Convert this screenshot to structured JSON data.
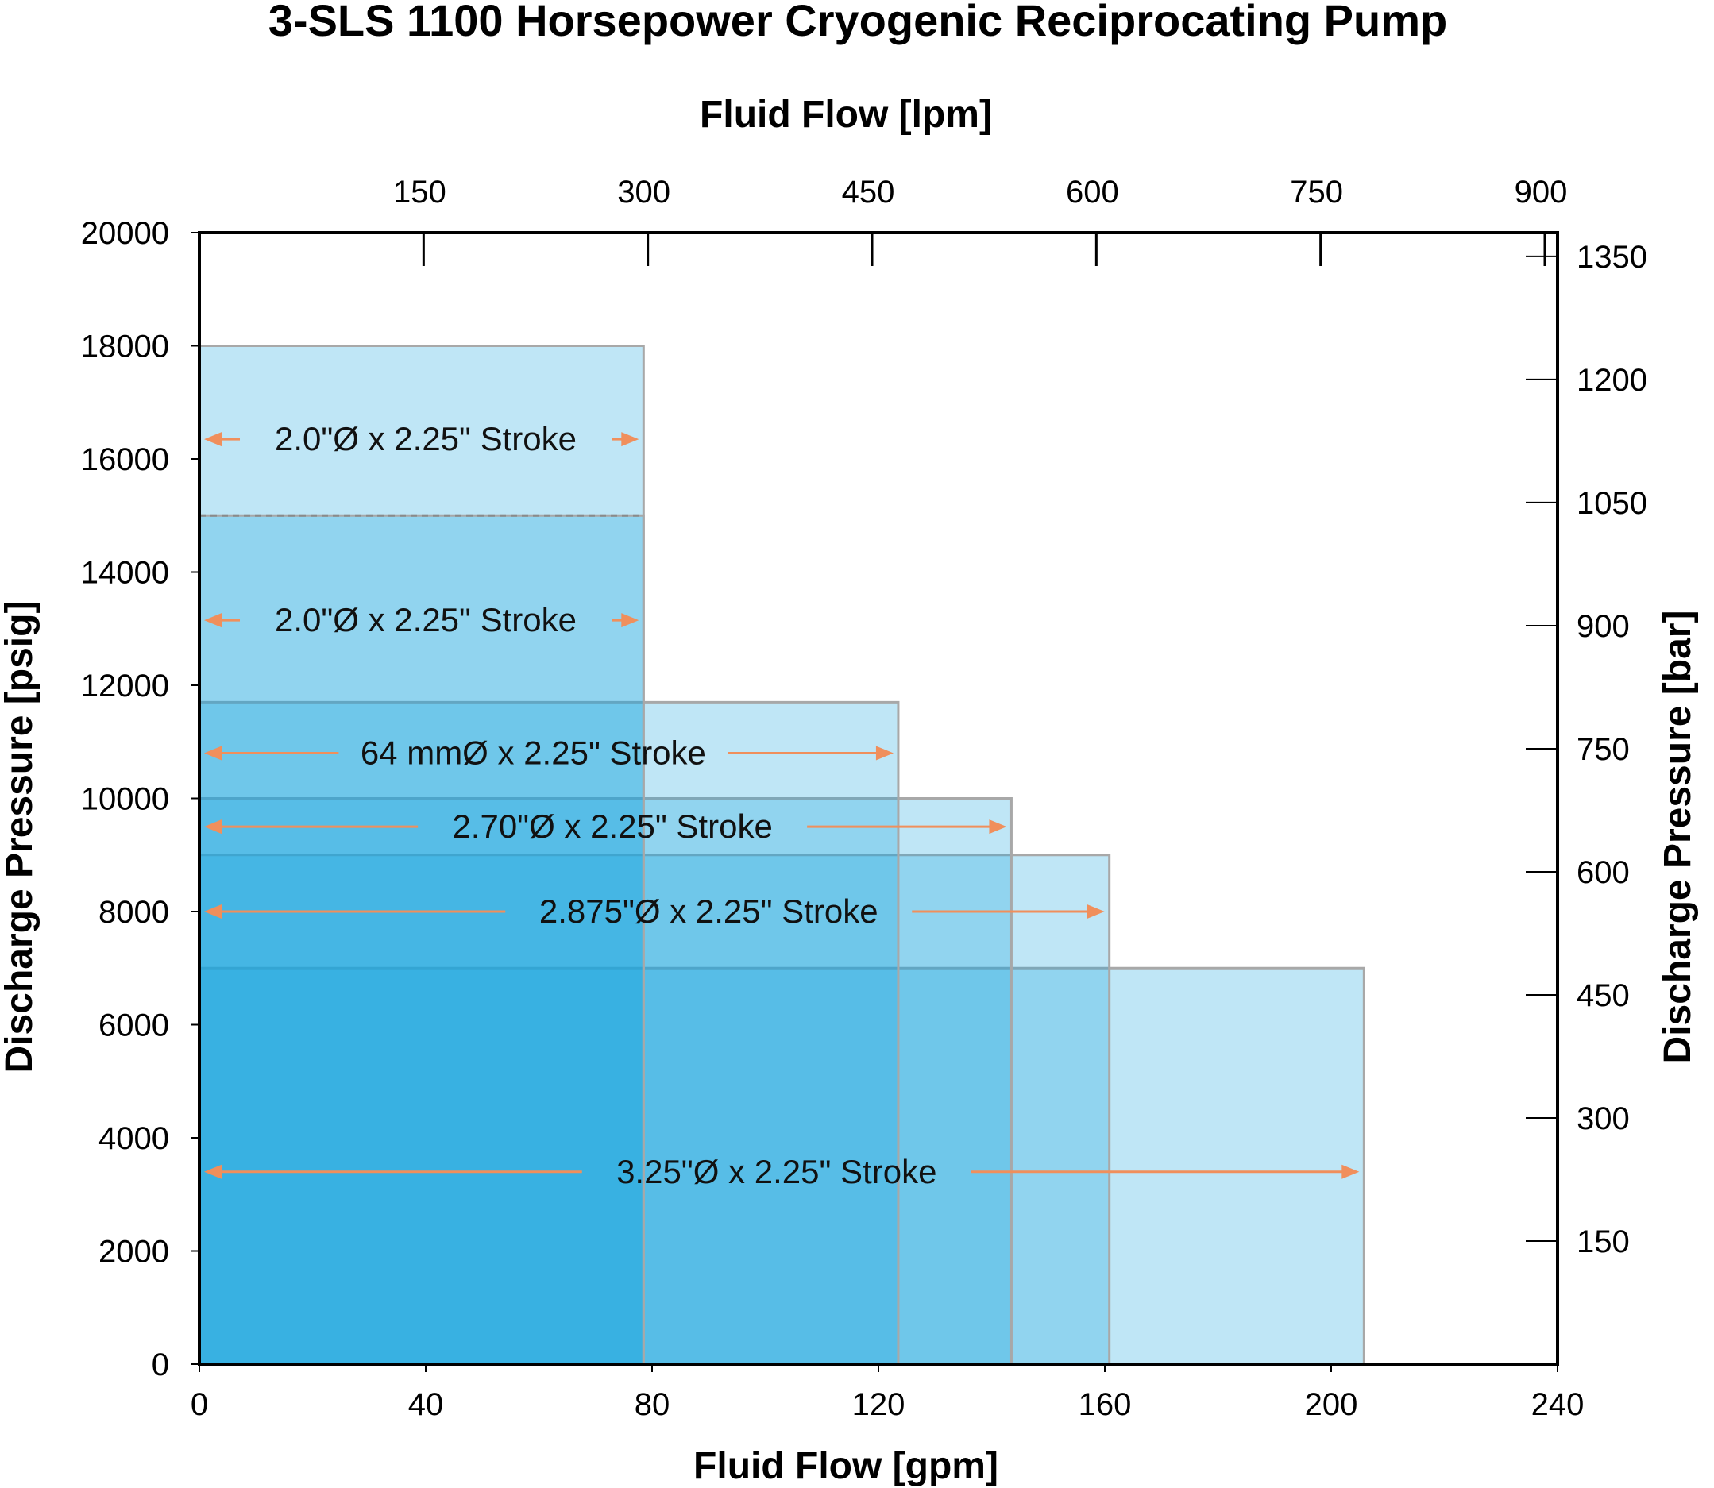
{
  "chart_data": {
    "type": "bar",
    "title": "3-SLS 1100 Horsepower Cryogenic Reciprocating Pump",
    "xlabel": "Fluid Flow [gpm]",
    "x2label": "Fluid Flow [lpm]",
    "ylabel": "Discharge Pressure [psig]",
    "y2label": "Discharge Pressure [bar]",
    "xlim": [
      0,
      240
    ],
    "ylim": [
      0,
      20000
    ],
    "x_ticks": [
      "0",
      "40",
      "80",
      "120",
      "160",
      "200",
      "240"
    ],
    "x2_ticks": [
      "150",
      "300",
      "450",
      "600",
      "750",
      "900"
    ],
    "y_ticks": [
      "0",
      "2000",
      "4000",
      "6000",
      "8000",
      "10000",
      "12000",
      "14000",
      "16000",
      "18000",
      "20000"
    ],
    "y2_ticks": [
      "150",
      "300",
      "450",
      "600",
      "750",
      "900",
      "1050",
      "1200",
      "1350"
    ],
    "regions": [
      {
        "label": "2.0\"Ø x 2.25\" Stroke",
        "max_flow_gpm": 78.5,
        "max_pressure_psig": 18000
      },
      {
        "label": "2.0\"Ø x 2.25\" Stroke",
        "max_flow_gpm": 78.5,
        "max_pressure_psig": 15000
      },
      {
        "label": "64 mmØ x 2.25\" Stroke",
        "max_flow_gpm": 123.5,
        "max_pressure_psig": 11700
      },
      {
        "label": "2.70\"Ø x 2.25\" Stroke",
        "max_flow_gpm": 143.5,
        "max_pressure_psig": 10000
      },
      {
        "label": "2.875\"Ø x 2.25\" Stroke",
        "max_flow_gpm": 160.8,
        "max_pressure_psig": 9000
      },
      {
        "label": "3.25\"Ø x 2.25\" Stroke",
        "max_flow_gpm": 205.8,
        "max_pressure_psig": 7000
      }
    ],
    "legend": "none",
    "grid": false,
    "colors": {
      "fill": "#1aa7df",
      "arrow": "#f08f5c",
      "edge": "#a8a8a8"
    }
  }
}
